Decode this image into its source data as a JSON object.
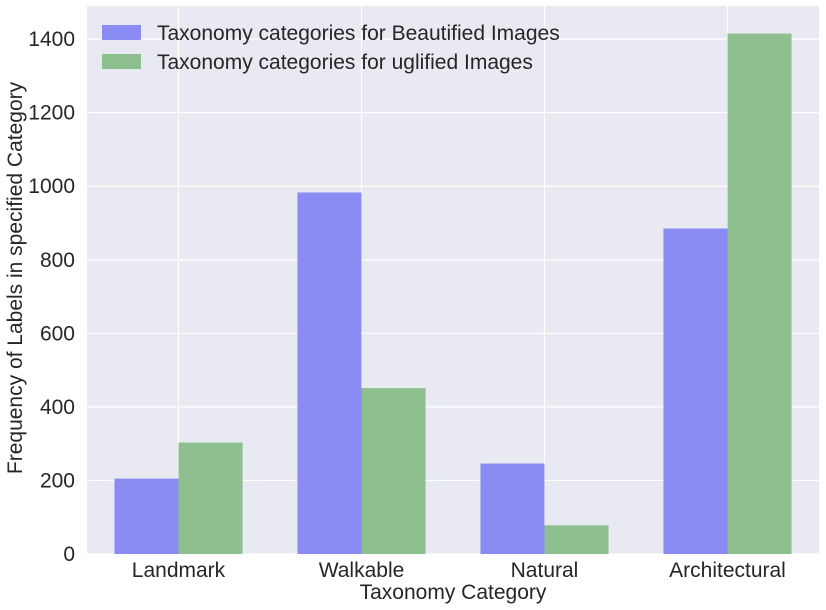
{
  "chart_data": {
    "type": "bar",
    "title": "",
    "xlabel": "Taxonomy Category",
    "ylabel": "Frequency of Labels in specified Category",
    "categories": [
      "Landmark",
      "Walkable",
      "Natural",
      "Architectural"
    ],
    "series": [
      {
        "name": "Taxonomy categories for Beautified Images",
        "color": "#8a8cf4",
        "values": [
          205,
          983,
          246,
          885
        ]
      },
      {
        "name": "Taxonomy categories for uglified Images",
        "color": "#8ebf8e",
        "values": [
          303,
          451,
          78,
          1415
        ]
      }
    ],
    "ylim": [
      0,
      1490
    ],
    "yticks": [
      0,
      200,
      400,
      600,
      800,
      1000,
      1200,
      1400
    ],
    "grid": true,
    "legend_position": "top-left",
    "background": "#e9e9f1",
    "grid_color": "#ffffff"
  }
}
